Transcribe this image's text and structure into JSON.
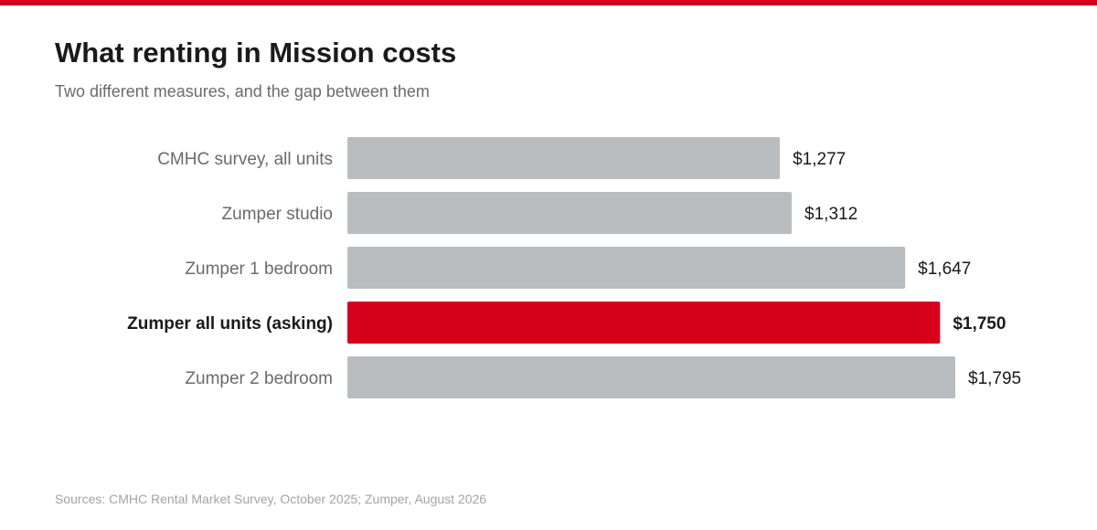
{
  "header": {
    "title": "What renting in Mission costs",
    "subtitle": "Two different measures, and the gap between them"
  },
  "footer": {
    "source": "Sources: CMHC Rental Market Survey, October 2025; Zumper, August 2026"
  },
  "colors": {
    "accent": "#d6001c",
    "bar": "#babdbf",
    "label": "#6b6b6b",
    "value": "#1a1a1a"
  },
  "chart_data": {
    "type": "bar",
    "orientation": "horizontal",
    "categories": [
      "CMHC survey, all units",
      "Zumper studio",
      "Zumper 1 bedroom",
      "Zumper all units (asking)",
      "Zumper 2 bedroom"
    ],
    "values": [
      1277,
      1312,
      1647,
      1750,
      1795
    ],
    "value_labels": [
      "$1,277",
      "$1,312",
      "$1,647",
      "$1,750",
      "$1,795"
    ],
    "highlight": "Zumper all units (asking)",
    "title": "What renting in Mission costs",
    "subtitle": "Two different measures, and the gap between them",
    "xlabel": "",
    "ylabel": "",
    "xlim": [
      0,
      1795
    ],
    "grid": false,
    "legend": "none"
  }
}
